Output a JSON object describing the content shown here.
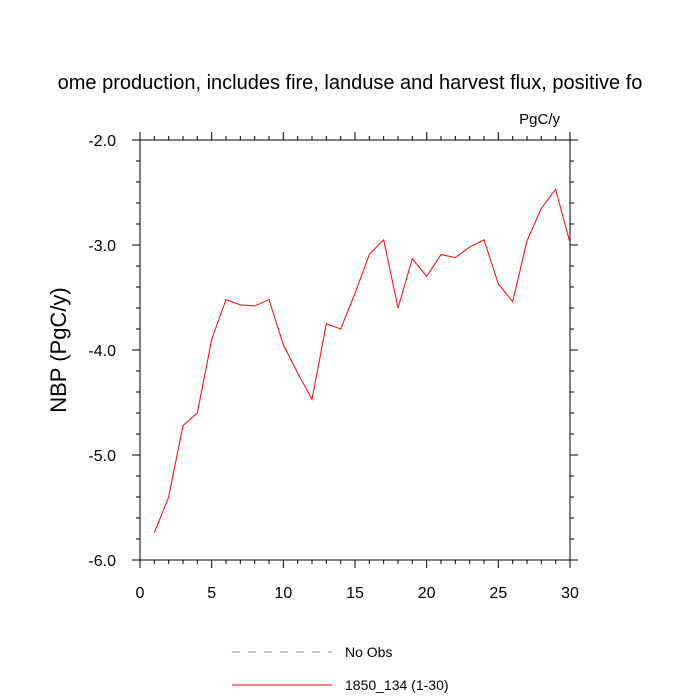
{
  "chart_data": {
    "type": "line",
    "title": "ome production, includes fire, landuse and harvest flux, positive fo",
    "units": "PgC/y",
    "ylabel": "NBP  (PgC/y)",
    "xlabel": "",
    "xlim": [
      0,
      30
    ],
    "ylim": [
      -6.0,
      -2.0
    ],
    "xticks": [
      0,
      5,
      10,
      15,
      20,
      25,
      30
    ],
    "yticks": [
      -6.0,
      -5.0,
      -4.0,
      -3.0,
      -2.0
    ],
    "ytick_labels": [
      "-6.0",
      "-5.0",
      "-4.0",
      "-3.0",
      "-2.0"
    ],
    "grid": false,
    "legend_position": "bottom-center",
    "series": [
      {
        "name": "No Obs",
        "color": "#8080e0",
        "dash": "dashed",
        "x": [],
        "y": []
      },
      {
        "name": "1850_134 (1-30)",
        "color": "#ff0000",
        "dash": "solid",
        "x": [
          1,
          2,
          3,
          4,
          5,
          6,
          7,
          8,
          9,
          10,
          11,
          12,
          13,
          14,
          15,
          16,
          17,
          18,
          19,
          20,
          21,
          22,
          23,
          24,
          25,
          26,
          27,
          28,
          29,
          30
        ],
        "y": [
          -5.74,
          -5.4,
          -4.72,
          -4.6,
          -3.9,
          -3.52,
          -3.57,
          -3.58,
          -3.52,
          -3.95,
          -4.22,
          -4.47,
          -3.75,
          -3.8,
          -3.46,
          -3.09,
          -2.95,
          -3.6,
          -3.13,
          -3.3,
          -3.09,
          -3.12,
          -3.02,
          -2.95,
          -3.37,
          -3.54,
          -2.96,
          -2.65,
          -2.47,
          -2.98
        ]
      }
    ]
  }
}
